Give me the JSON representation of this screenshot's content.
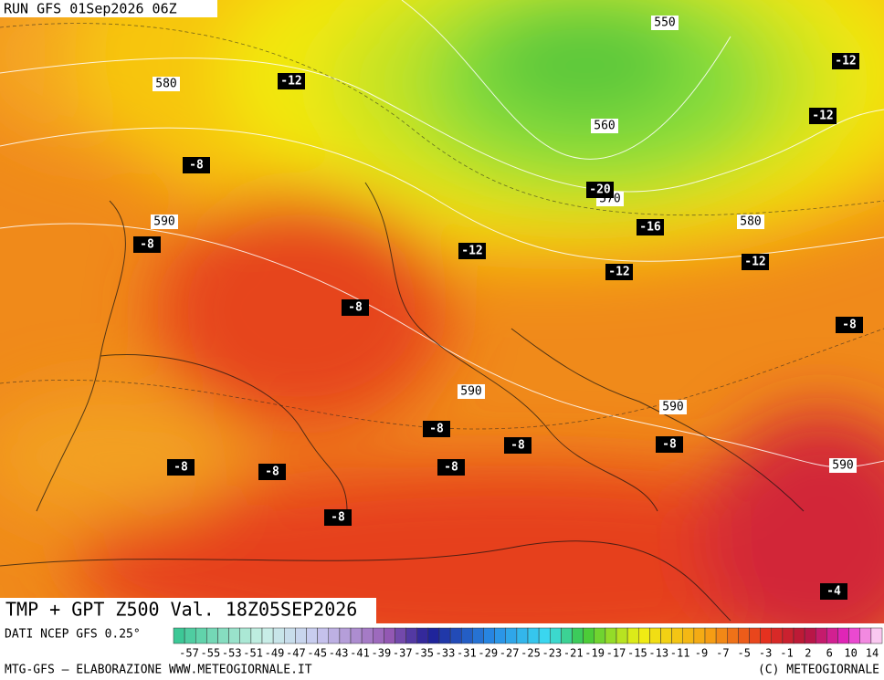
{
  "header": {
    "run": "RUN GFS 01Sep2026 06Z"
  },
  "map": {
    "height_labels": [
      550,
      580,
      560,
      570,
      590,
      580,
      590,
      590,
      590
    ],
    "temperature_labels": [
      -12,
      -12,
      -12,
      -8,
      -20,
      -16,
      -8,
      -12,
      -12,
      -12,
      -8,
      -8,
      -8,
      -8,
      -8,
      -8,
      -8,
      -8,
      -8,
      -4
    ]
  },
  "footer": {
    "title": "TMP + GPT Z500 Val. 18Z05SEP2026",
    "source": "DATI NCEP GFS 0.25°",
    "scale": [
      -57,
      -55,
      -53,
      -51,
      -49,
      -47,
      -45,
      -43,
      -41,
      -39,
      -37,
      -35,
      -33,
      -31,
      -29,
      -27,
      -25,
      -23,
      -21,
      -19,
      -17,
      -15,
      -13,
      -11,
      -9,
      -7,
      -5,
      -3,
      -1,
      2,
      6,
      10,
      14
    ],
    "credit": "MTG-GFS — ELABORAZIONE WWW.METEOGIORNALE.IT",
    "copyright": "(C) METEOGIORNALE"
  }
}
